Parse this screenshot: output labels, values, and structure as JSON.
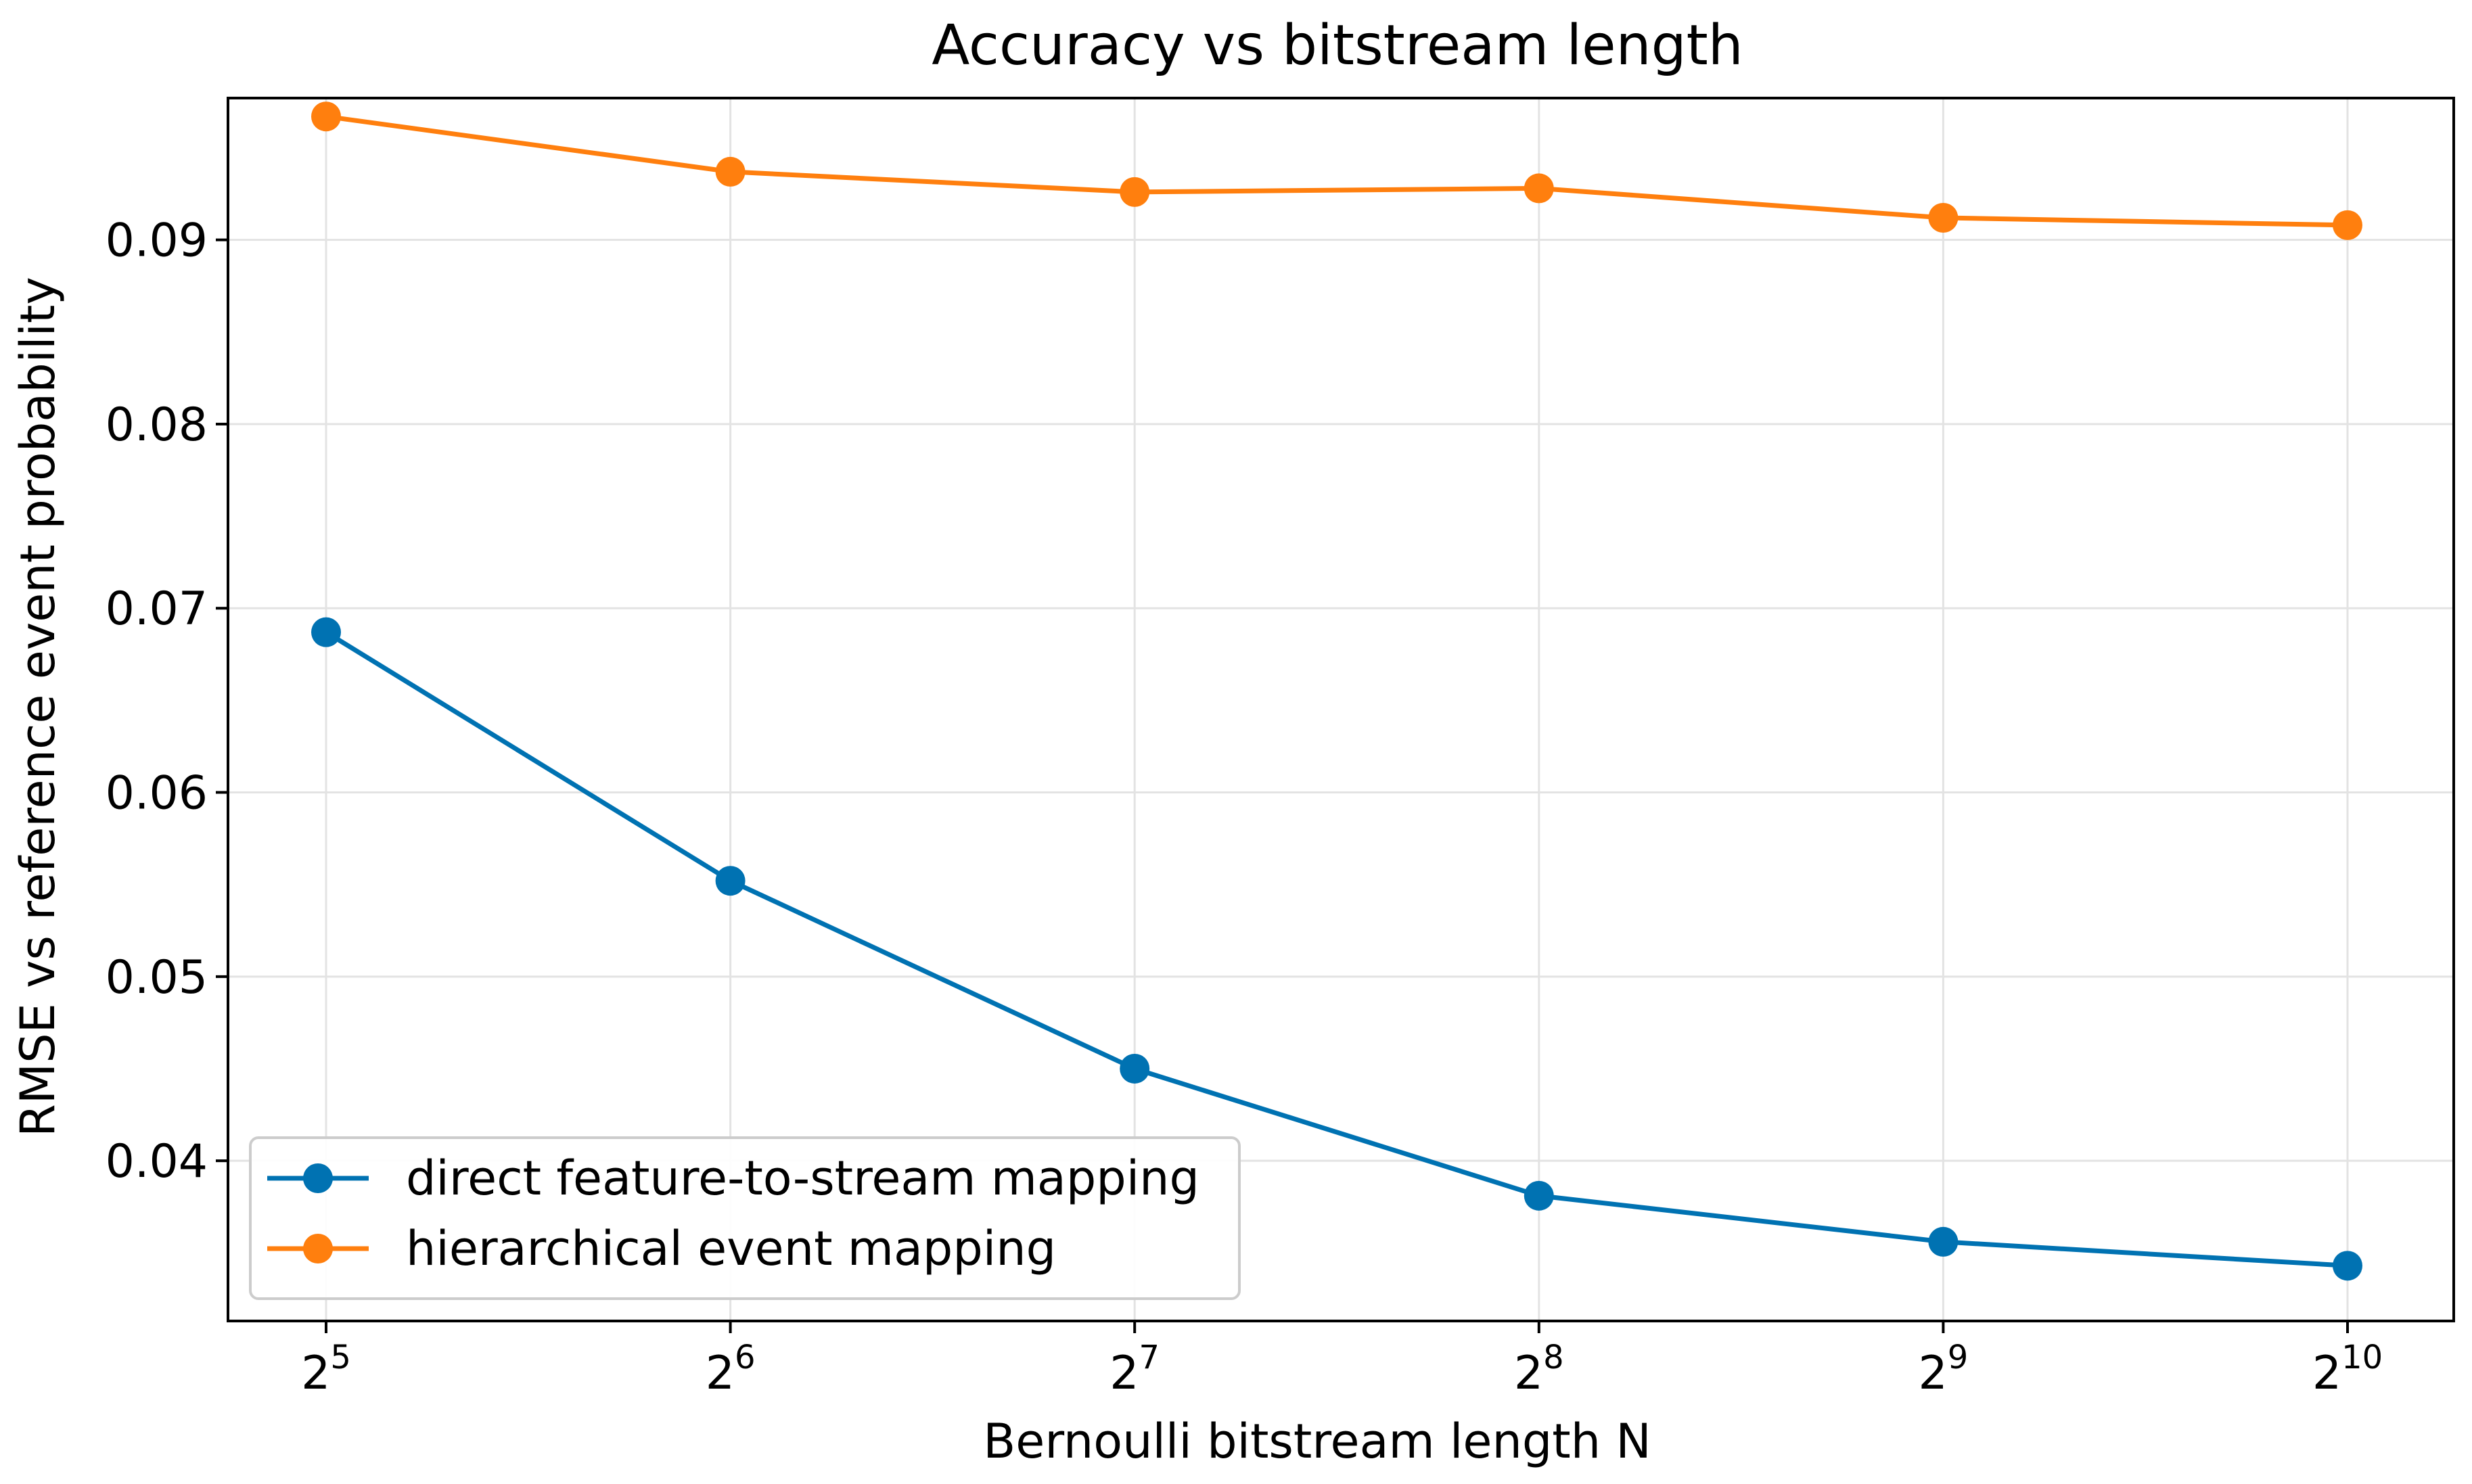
{
  "chart_data": {
    "type": "line",
    "title": "Accuracy vs bitstream length",
    "xlabel": "Bernoulli bitstream length N",
    "ylabel": "RMSE vs reference event probability",
    "x_scale": "log2",
    "x": [
      32,
      64,
      128,
      256,
      512,
      1024
    ],
    "x_tick_labels": [
      {
        "base": "2",
        "exp": "5"
      },
      {
        "base": "2",
        "exp": "6"
      },
      {
        "base": "2",
        "exp": "7"
      },
      {
        "base": "2",
        "exp": "8"
      },
      {
        "base": "2",
        "exp": "9"
      },
      {
        "base": "2",
        "exp": "10"
      }
    ],
    "y_ticks": [
      0.04,
      0.05,
      0.06,
      0.07,
      0.08,
      0.09
    ],
    "y_tick_labels": [
      "0.04",
      "0.05",
      "0.06",
      "0.07",
      "0.08",
      "0.09"
    ],
    "ylim": [
      0.0313,
      0.0977
    ],
    "grid": true,
    "legend_position": "lower-left",
    "series": [
      {
        "name": "direct feature-to-stream mapping",
        "color": "#0072b2",
        "marker": "circle",
        "values": [
          0.0687,
          0.0552,
          0.045,
          0.0381,
          0.0356,
          0.0343
        ]
      },
      {
        "name": "hierarchical event mapping",
        "color": "#ff7f0e",
        "marker": "circle",
        "values": [
          0.0967,
          0.0937,
          0.0926,
          0.0928,
          0.0912,
          0.0908
        ]
      }
    ]
  }
}
